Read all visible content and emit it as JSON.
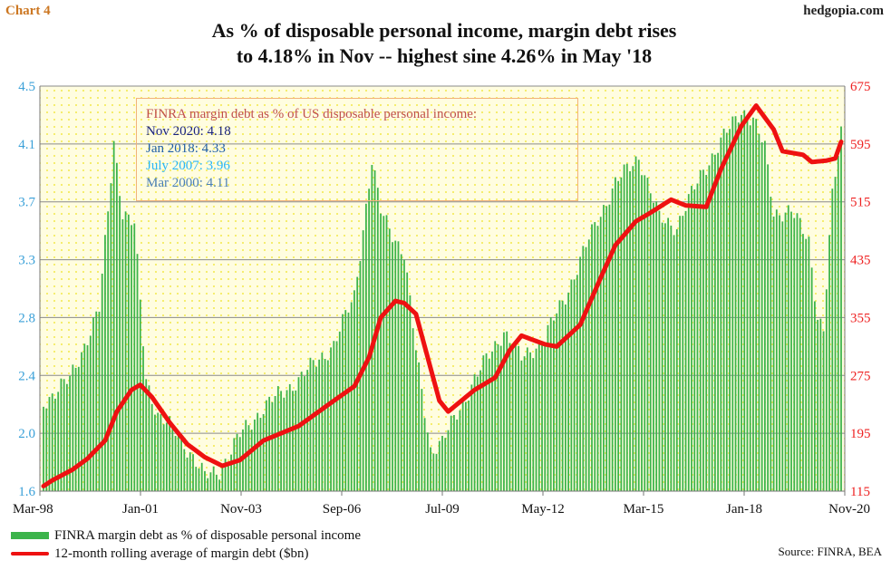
{
  "header": {
    "chart_label": "Chart 4",
    "brand": "hedgopia.com",
    "title_line1": "As % of disposable personal income, margin debt rises",
    "title_line2": "to 4.18% in Nov -- highest sine 4.26% in May '18"
  },
  "annotation": {
    "heading": "FINRA margin debt as % of US disposable personal income:",
    "items": [
      {
        "text": "Nov 2020: 4.18",
        "color": "#1a237e"
      },
      {
        "text": "Jan 2018: 4.33",
        "color": "#1f5fa8"
      },
      {
        "text": "July 2007: 3.96",
        "color": "#29b6f6"
      },
      {
        "text": "Mar 2000: 4.11",
        "color": "#4a7fb5"
      }
    ],
    "heading_color": "#c0504d"
  },
  "legend": {
    "bar_label": "FINRA margin debt as % of disposable personal income",
    "line_label": "12-month rolling average of margin debt ($bn)"
  },
  "source": "Source: FINRA, BEA",
  "colors": {
    "bars": "#3cb44b",
    "line": "#ee1111",
    "plot_bg": "#fffde0",
    "dots": "#f2e84a",
    "left_axis": "#3aa0d8",
    "right_axis": "#ee2222"
  },
  "chart_data": {
    "type": "bar",
    "x_start": "1998-03",
    "x_end": "2020-11",
    "x_ticks": [
      "Mar-98",
      "Jan-01",
      "Nov-03",
      "Sep-06",
      "Jul-09",
      "May-12",
      "Mar-15",
      "Jan-18",
      "Nov-20"
    ],
    "y_left": {
      "ticks": [
        "1.6",
        "2.0",
        "2.4",
        "2.8",
        "3.3",
        "3.7",
        "4.1",
        "4.5"
      ],
      "min": 1.6,
      "max": 4.5
    },
    "y_right": {
      "ticks": [
        "115",
        "195",
        "275",
        "355",
        "435",
        "515",
        "595",
        "675"
      ],
      "min": 115,
      "max": 675
    },
    "grid": true,
    "series": [
      {
        "name": "FINRA margin debt as % of disposable personal income",
        "axis": "left",
        "anchors": [
          [
            "1998-03",
            2.24
          ],
          [
            "1998-12",
            2.4
          ],
          [
            "1999-06",
            2.7
          ],
          [
            "1999-10",
            2.9
          ],
          [
            "2000-01",
            3.6
          ],
          [
            "2000-03",
            4.11
          ],
          [
            "2000-06",
            3.6
          ],
          [
            "2000-10",
            3.5
          ],
          [
            "2001-02",
            2.4
          ],
          [
            "2001-06",
            2.15
          ],
          [
            "2002-01",
            2.0
          ],
          [
            "2002-06",
            1.85
          ],
          [
            "2002-10",
            1.7
          ],
          [
            "2003-03",
            1.75
          ],
          [
            "2003-10",
            2.0
          ],
          [
            "2004-06",
            2.2
          ],
          [
            "2005-06",
            2.4
          ],
          [
            "2006-06",
            2.65
          ],
          [
            "2007-01",
            3.0
          ],
          [
            "2007-07",
            3.96
          ],
          [
            "2007-10",
            3.6
          ],
          [
            "2008-06",
            3.3
          ],
          [
            "2008-10",
            2.6
          ],
          [
            "2009-03",
            1.9
          ],
          [
            "2009-07",
            1.95
          ],
          [
            "2010-06",
            2.4
          ],
          [
            "2011-04",
            2.75
          ],
          [
            "2011-10",
            2.55
          ],
          [
            "2012-06",
            2.7
          ],
          [
            "2013-01",
            3.0
          ],
          [
            "2013-12",
            3.55
          ],
          [
            "2014-06",
            3.8
          ],
          [
            "2015-02",
            4.0
          ],
          [
            "2015-09",
            3.55
          ],
          [
            "2016-03",
            3.5
          ],
          [
            "2016-12",
            3.9
          ],
          [
            "2018-01",
            4.33
          ],
          [
            "2018-05",
            4.26
          ],
          [
            "2018-09",
            4.05
          ],
          [
            "2018-12",
            3.6
          ],
          [
            "2019-06",
            3.6
          ],
          [
            "2019-12",
            3.4
          ],
          [
            "2020-03",
            2.85
          ],
          [
            "2020-05",
            2.75
          ],
          [
            "2020-08",
            3.7
          ],
          [
            "2020-11",
            4.18
          ]
        ]
      },
      {
        "name": "12-month rolling average of margin debt ($bn)",
        "axis": "right",
        "anchors": [
          [
            "1998-03",
            122
          ],
          [
            "1998-06",
            130
          ],
          [
            "1999-01",
            145
          ],
          [
            "1999-06",
            160
          ],
          [
            "1999-12",
            185
          ],
          [
            "2000-04",
            225
          ],
          [
            "2000-09",
            255
          ],
          [
            "2000-12",
            262
          ],
          [
            "2001-04",
            245
          ],
          [
            "2001-10",
            210
          ],
          [
            "2002-04",
            180
          ],
          [
            "2002-10",
            162
          ],
          [
            "2003-04",
            150
          ],
          [
            "2003-10",
            158
          ],
          [
            "2004-06",
            185
          ],
          [
            "2005-06",
            205
          ],
          [
            "2006-06",
            240
          ],
          [
            "2007-01",
            260
          ],
          [
            "2007-06",
            300
          ],
          [
            "2007-10",
            355
          ],
          [
            "2008-03",
            378
          ],
          [
            "2008-06",
            375
          ],
          [
            "2008-10",
            360
          ],
          [
            "2009-02",
            300
          ],
          [
            "2009-06",
            240
          ],
          [
            "2009-09",
            225
          ],
          [
            "2010-06",
            255
          ],
          [
            "2011-01",
            272
          ],
          [
            "2011-06",
            310
          ],
          [
            "2011-10",
            330
          ],
          [
            "2012-06",
            318
          ],
          [
            "2012-10",
            315
          ],
          [
            "2013-06",
            345
          ],
          [
            "2014-01",
            410
          ],
          [
            "2014-06",
            455
          ],
          [
            "2015-01",
            488
          ],
          [
            "2015-06",
            500
          ],
          [
            "2016-01",
            518
          ],
          [
            "2016-06",
            510
          ],
          [
            "2017-01",
            508
          ],
          [
            "2017-06",
            560
          ],
          [
            "2018-01",
            620
          ],
          [
            "2018-06",
            648
          ],
          [
            "2018-12",
            615
          ],
          [
            "2019-03",
            585
          ],
          [
            "2019-10",
            580
          ],
          [
            "2020-01",
            570
          ],
          [
            "2020-06",
            572
          ],
          [
            "2020-09",
            575
          ],
          [
            "2020-11",
            598
          ]
        ]
      }
    ]
  }
}
